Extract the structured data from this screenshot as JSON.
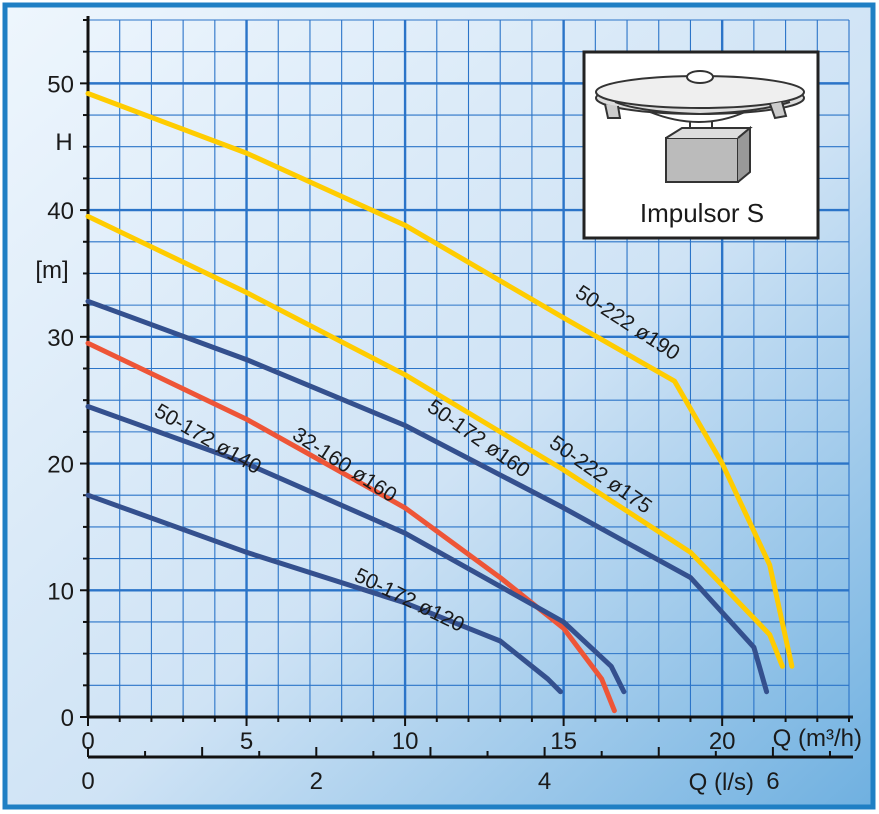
{
  "chart_data": {
    "type": "line",
    "title": "",
    "xlabel": "Q (m³/h)",
    "xlabel_secondary": "Q (l/s)",
    "ylabel_top": "H",
    "ylabel_unit": "[m]",
    "xlim": [
      0,
      24
    ],
    "ylim": [
      0,
      55
    ],
    "x_ticks": [
      "0",
      "5",
      "10",
      "15",
      "20"
    ],
    "x_ticks_values": [
      0,
      5,
      10,
      15,
      20
    ],
    "x2_ticks": [
      "0",
      "2",
      "4",
      "6"
    ],
    "x2_ticks_values": [
      0,
      2,
      4,
      6
    ],
    "y_ticks": [
      "0",
      "10",
      "20",
      "30",
      "40",
      "50"
    ],
    "y_ticks_values": [
      0,
      10,
      20,
      30,
      40,
      50
    ],
    "grid": true,
    "inset_label": "Impulsor S",
    "colors": {
      "frame": "#1f7fc4",
      "grid": "#2b74c8",
      "bg_light": "#e8f2fb",
      "bg_dark": "#7fb6e2",
      "yellow": "#ffcc00",
      "navy": "#34508e",
      "red": "#ee5537"
    },
    "series": [
      {
        "name": "50-222 ø190",
        "color": "yellow",
        "points": [
          [
            0,
            49.2
          ],
          [
            5,
            44.5
          ],
          [
            10,
            38.8
          ],
          [
            15,
            31.5
          ],
          [
            18.5,
            26.5
          ],
          [
            20,
            20
          ],
          [
            21.5,
            12
          ],
          [
            22.2,
            4
          ]
        ]
      },
      {
        "name": "50-222 ø175",
        "color": "yellow",
        "points": [
          [
            0,
            39.5
          ],
          [
            5,
            33.5
          ],
          [
            10,
            27
          ],
          [
            15,
            19.5
          ],
          [
            19,
            13
          ],
          [
            21.5,
            6.5
          ],
          [
            21.9,
            4
          ]
        ]
      },
      {
        "name": "50-172 ø160",
        "color": "navy",
        "points": [
          [
            0,
            32.8
          ],
          [
            5,
            28.2
          ],
          [
            10,
            23
          ],
          [
            15,
            16.5
          ],
          [
            19,
            11
          ],
          [
            21,
            5.5
          ],
          [
            21.4,
            2
          ]
        ]
      },
      {
        "name": "32-160 ø160",
        "color": "red",
        "points": [
          [
            0,
            29.5
          ],
          [
            5,
            23.5
          ],
          [
            10,
            16.5
          ],
          [
            13,
            11
          ],
          [
            15,
            7
          ],
          [
            16.2,
            3
          ],
          [
            16.6,
            0.5
          ]
        ]
      },
      {
        "name": "50-172 ø140",
        "color": "navy",
        "points": [
          [
            0,
            24.5
          ],
          [
            5,
            20
          ],
          [
            10,
            14.5
          ],
          [
            15,
            7.5
          ],
          [
            16.5,
            4
          ],
          [
            16.9,
            2
          ]
        ]
      },
      {
        "name": "50-172 ø120",
        "color": "navy",
        "points": [
          [
            0,
            17.5
          ],
          [
            5,
            13
          ],
          [
            10,
            9
          ],
          [
            13,
            6
          ],
          [
            14.5,
            3
          ],
          [
            14.9,
            2
          ]
        ]
      }
    ]
  }
}
